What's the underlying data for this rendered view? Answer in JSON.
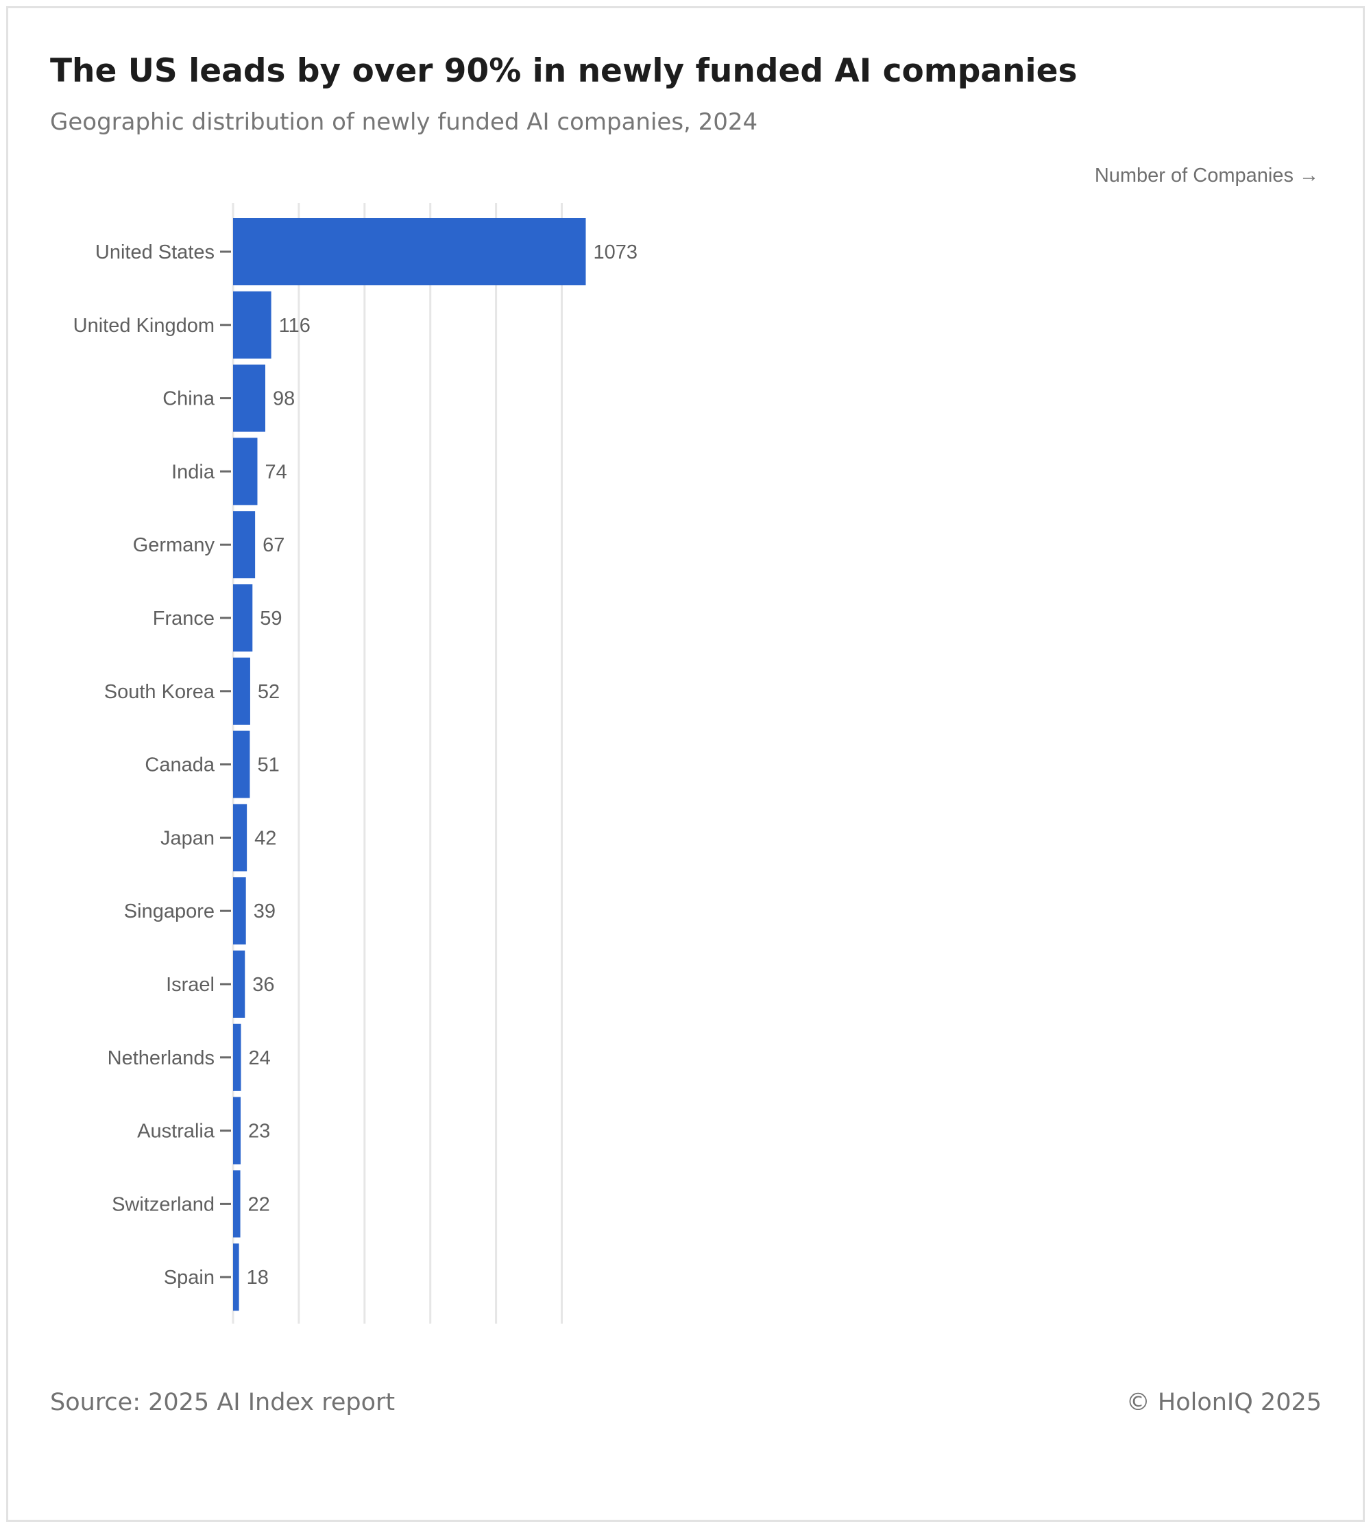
{
  "header": {
    "title": "The US leads by over 90% in newly funded AI companies",
    "subtitle": "Geographic distribution of newly funded AI companies, 2024"
  },
  "footer": {
    "source": "Source: 2025 AI Index report",
    "copyright": "© HolonIQ 2025"
  },
  "colors": {
    "bar": "#2b65cc",
    "grid": "#e6e6e6",
    "text": "#5f5f5f"
  },
  "chart_data": {
    "type": "bar",
    "orientation": "horizontal",
    "title": "The US leads by over 90% in newly funded AI companies",
    "subtitle": "Geographic distribution of newly funded AI companies, 2024",
    "xlabel": "Number of Companies →",
    "ylabel": "",
    "xlim": [
      0,
      1200
    ],
    "grid": true,
    "gridlines": [
      0,
      200,
      400,
      600,
      800,
      1000
    ],
    "categories": [
      "United States",
      "United Kingdom",
      "China",
      "India",
      "Germany",
      "France",
      "South Korea",
      "Canada",
      "Japan",
      "Singapore",
      "Israel",
      "Netherlands",
      "Australia",
      "Switzerland",
      "Spain"
    ],
    "values": [
      1073,
      116,
      98,
      74,
      67,
      59,
      52,
      51,
      42,
      39,
      36,
      24,
      23,
      22,
      18
    ]
  }
}
